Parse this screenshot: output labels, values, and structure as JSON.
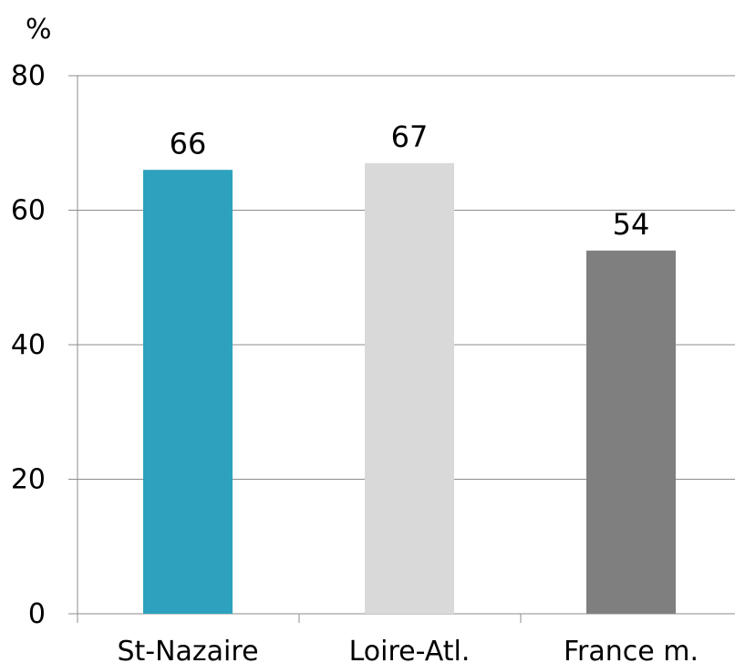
{
  "chart_data": {
    "type": "bar",
    "categories": [
      "St-Nazaire",
      "Loire-Atl.",
      "France m."
    ],
    "values": [
      66,
      67,
      54
    ],
    "colors": [
      "#2da1bd",
      "#d9d9d9",
      "#7f7f7f"
    ],
    "data_labels": [
      "66",
      "67",
      "54"
    ],
    "y_unit": "%",
    "ylim": [
      0,
      80
    ],
    "y_ticks": [
      0,
      20,
      40,
      60,
      80
    ],
    "y_tick_labels": [
      "0",
      "20",
      "40",
      "60",
      "80"
    ],
    "grid": true,
    "legend": "none"
  }
}
